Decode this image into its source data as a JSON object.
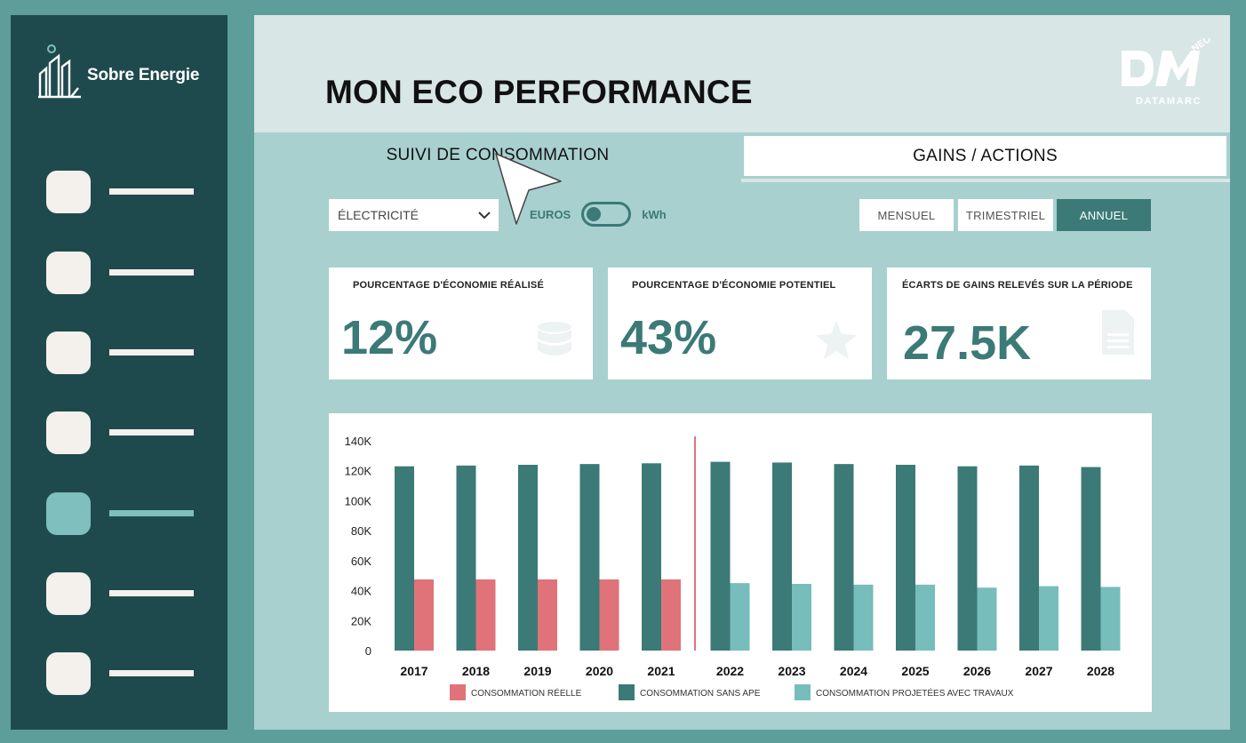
{
  "sidebar": {
    "brand": "Sobre Energie",
    "items": [
      {
        "id": 1,
        "active": false
      },
      {
        "id": 2,
        "active": false
      },
      {
        "id": 3,
        "active": false
      },
      {
        "id": 4,
        "active": false
      },
      {
        "id": 5,
        "active": true
      },
      {
        "id": 6,
        "active": false
      },
      {
        "id": 7,
        "active": false
      }
    ]
  },
  "header": {
    "title": "MON ECO PERFORMANCE",
    "logo_text": "DATAMARC",
    "logo_mark": "DM",
    "logo_tag": "NEO"
  },
  "tabs": [
    {
      "label": "SUIVI DE CONSOMMATION",
      "active": true
    },
    {
      "label": "GAINS / ACTIONS",
      "active": false
    }
  ],
  "filters": {
    "energy": "ÉLECTRICITÉ",
    "toggle_left": "EUROS",
    "toggle_right": "kWh",
    "periods": [
      {
        "label": "MENSUEL",
        "active": false
      },
      {
        "label": "TRIMESTRIEL",
        "active": false
      },
      {
        "label": "ANNUEL",
        "active": true
      }
    ]
  },
  "kpis": [
    {
      "label": "POURCENTAGE D'ÉCONOMIE RÉALISÉ",
      "value": "12%",
      "icon": "database-icon"
    },
    {
      "label": "POURCENTAGE D'ÉCONOMIE POTENTIEL",
      "value": "43%",
      "icon": "star-icon"
    },
    {
      "label": "ÉCARTS DE GAINS RELEVÉS SUR LA PÉRIODE",
      "value": "27.5K",
      "icon": "document-icon"
    }
  ],
  "colors": {
    "teal_dark": "#3b7a76",
    "teal_light": "#76bdbb",
    "red": "#e0737a"
  },
  "chart_data": {
    "type": "bar",
    "categories": [
      "2017",
      "2018",
      "2019",
      "2020",
      "2021",
      "2022",
      "2023",
      "2024",
      "2025",
      "2026",
      "2027",
      "2028"
    ],
    "ylim": [
      0,
      140000
    ],
    "yticks": [
      "0",
      "20K",
      "40K",
      "60K",
      "80K",
      "100K",
      "120K",
      "140K"
    ],
    "divider_after": "2021",
    "series": [
      {
        "name": "CONSOMMATION SANS APE",
        "color": "#3b7a76",
        "values": [
          123000,
          123500,
          124000,
          124500,
          125000,
          126000,
          125500,
          124500,
          124000,
          123000,
          123500,
          122500
        ]
      },
      {
        "name": "CONSOMMATION RÉELLE",
        "color": "#e0737a",
        "values": [
          47500,
          47500,
          47500,
          47500,
          47500,
          null,
          null,
          null,
          null,
          null,
          null,
          null
        ]
      },
      {
        "name": "CONSOMMATION PROJETÉES AVEC TRAVAUX",
        "color": "#76bdbb",
        "values": [
          null,
          null,
          null,
          null,
          null,
          45000,
          44500,
          44000,
          44000,
          42000,
          43000,
          42500
        ]
      }
    ],
    "legend": [
      {
        "label": "CONSOMMATION RÉELLE",
        "color": "#e0737a"
      },
      {
        "label": "CONSOMMATION SANS APE",
        "color": "#3b7a76"
      },
      {
        "label": "CONSOMMATION PROJETÉES AVEC TRAVAUX",
        "color": "#76bdbb"
      }
    ]
  }
}
